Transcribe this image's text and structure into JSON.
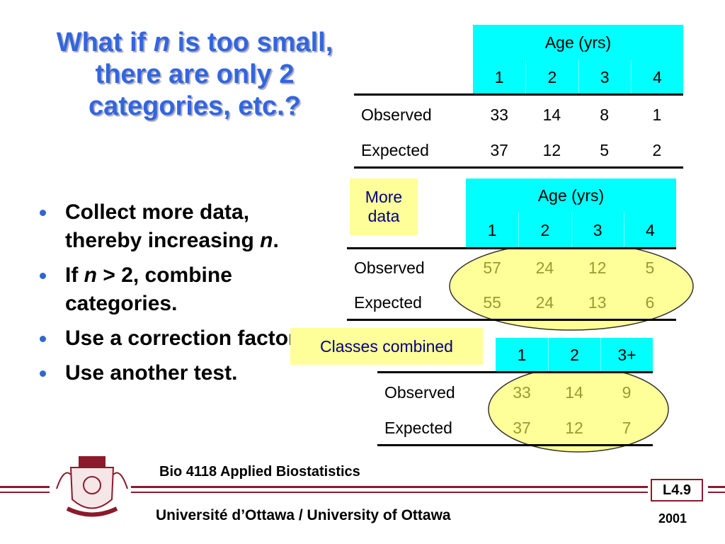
{
  "title": [
    {
      "text": "What if "
    },
    {
      "text": "n",
      "italic": true
    },
    {
      "text": " is too small, there are only 2 categories, etc.?"
    }
  ],
  "bullets": [
    [
      {
        "text": "Collect more data, thereby increasing "
      },
      {
        "text": "n",
        "italic": true
      },
      {
        "text": "."
      }
    ],
    [
      {
        "text": "If "
      },
      {
        "text": "n",
        "italic": true
      },
      {
        "text": " > 2, combine categories."
      }
    ],
    [
      {
        "text": "Use a correction factor."
      }
    ],
    [
      {
        "text": "Use another test."
      }
    ]
  ],
  "tables": [
    {
      "header": "Age (yrs)",
      "columns": [
        "1",
        "2",
        "3",
        "4"
      ],
      "rows": [
        {
          "label": "Observed",
          "values": [
            33,
            14,
            8,
            1
          ]
        },
        {
          "label": "Expected",
          "values": [
            37,
            12,
            5,
            2
          ]
        }
      ]
    },
    {
      "note": "More data",
      "header": "Age (yrs)",
      "columns": [
        "1",
        "2",
        "3",
        "4"
      ],
      "rows": [
        {
          "label": "Observed",
          "values": [
            57,
            24,
            12,
            5
          ]
        },
        {
          "label": "Expected",
          "values": [
            55,
            24,
            13,
            6
          ]
        }
      ]
    },
    {
      "note": "Classes combined",
      "columns": [
        "1",
        "2",
        "3+"
      ],
      "rows": [
        {
          "label": "Observed",
          "values": [
            33,
            14,
            9
          ]
        },
        {
          "label": "Expected",
          "values": [
            37,
            12,
            7
          ]
        }
      ]
    }
  ],
  "footer": {
    "course": "Bio 4118 Applied Biostatistics",
    "university": "Université d’Ottawa / University of Ottawa",
    "slide": "L4.9",
    "year": "2001"
  }
}
